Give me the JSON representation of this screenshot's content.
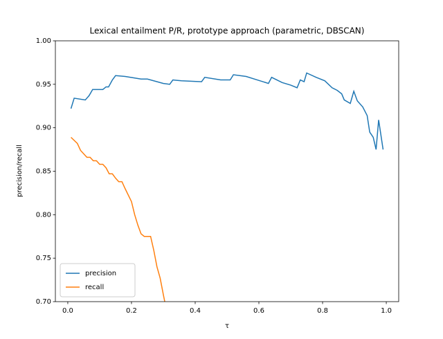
{
  "chart_data": {
    "type": "line",
    "title": "Lexical entailment P/R, prototype approach (parametric, DBSCAN)",
    "x_label": "τ",
    "y_label": "precision/recall",
    "xlim": [
      -0.039,
      1.039
    ],
    "ylim": [
      0.7,
      1.0
    ],
    "xticks": [
      {
        "value": 0,
        "label": "0.0"
      },
      {
        "value": 0.2,
        "label": "0.2"
      },
      {
        "value": 0.4,
        "label": "0.4"
      },
      {
        "value": 0.6,
        "label": "0.6"
      },
      {
        "value": 0.8,
        "label": "0.8"
      },
      {
        "value": 1,
        "label": "1.0"
      }
    ],
    "yticks": [
      {
        "value": 0.7,
        "label": "0.70"
      },
      {
        "value": 0.75,
        "label": "0.75"
      },
      {
        "value": 0.8,
        "label": "0.80"
      },
      {
        "value": 0.85,
        "label": "0.85"
      },
      {
        "value": 0.9,
        "label": "0.90"
      },
      {
        "value": 0.95,
        "label": "0.95"
      },
      {
        "value": 1.0,
        "label": "1.00"
      }
    ],
    "legend": "lower left",
    "series": [
      {
        "name": "precision",
        "color": "#1f77b4",
        "x": [
          0.01,
          0.02,
          0.055,
          0.067,
          0.078,
          0.11,
          0.12,
          0.128,
          0.14,
          0.15,
          0.18,
          0.23,
          0.25,
          0.3,
          0.32,
          0.33,
          0.357,
          0.42,
          0.43,
          0.48,
          0.51,
          0.52,
          0.56,
          0.595,
          0.63,
          0.64,
          0.673,
          0.7,
          0.72,
          0.73,
          0.742,
          0.75,
          0.78,
          0.807,
          0.83,
          0.846,
          0.86,
          0.868,
          0.887,
          0.898,
          0.909,
          0.926,
          0.94,
          0.948,
          0.959,
          0.968,
          0.976,
          0.99
        ],
        "values": [
          0.922,
          0.934,
          0.932,
          0.937,
          0.944,
          0.944,
          0.947,
          0.947,
          0.955,
          0.96,
          0.959,
          0.956,
          0.956,
          0.951,
          0.95,
          0.955,
          0.954,
          0.953,
          0.958,
          0.955,
          0.955,
          0.961,
          0.959,
          0.955,
          0.951,
          0.958,
          0.952,
          0.949,
          0.946,
          0.955,
          0.953,
          0.963,
          0.958,
          0.954,
          0.946,
          0.943,
          0.939,
          0.932,
          0.928,
          0.942,
          0.931,
          0.924,
          0.914,
          0.895,
          0.889,
          0.875,
          0.909,
          0.875
        ]
      },
      {
        "name": "recall",
        "color": "#ff7f0e",
        "x": [
          0.01,
          0.03,
          0.04,
          0.06,
          0.07,
          0.08,
          0.09,
          0.1,
          0.11,
          0.12,
          0.13,
          0.14,
          0.15,
          0.16,
          0.17,
          0.18,
          0.2,
          0.21,
          0.22,
          0.23,
          0.24,
          0.25,
          0.26,
          0.27,
          0.28,
          0.29,
          0.3,
          0.31
        ],
        "values": [
          0.889,
          0.882,
          0.874,
          0.866,
          0.866,
          0.862,
          0.862,
          0.858,
          0.858,
          0.854,
          0.847,
          0.847,
          0.842,
          0.838,
          0.838,
          0.83,
          0.815,
          0.8,
          0.788,
          0.778,
          0.775,
          0.775,
          0.775,
          0.759,
          0.74,
          0.727,
          0.708,
          0.69
        ]
      }
    ]
  }
}
